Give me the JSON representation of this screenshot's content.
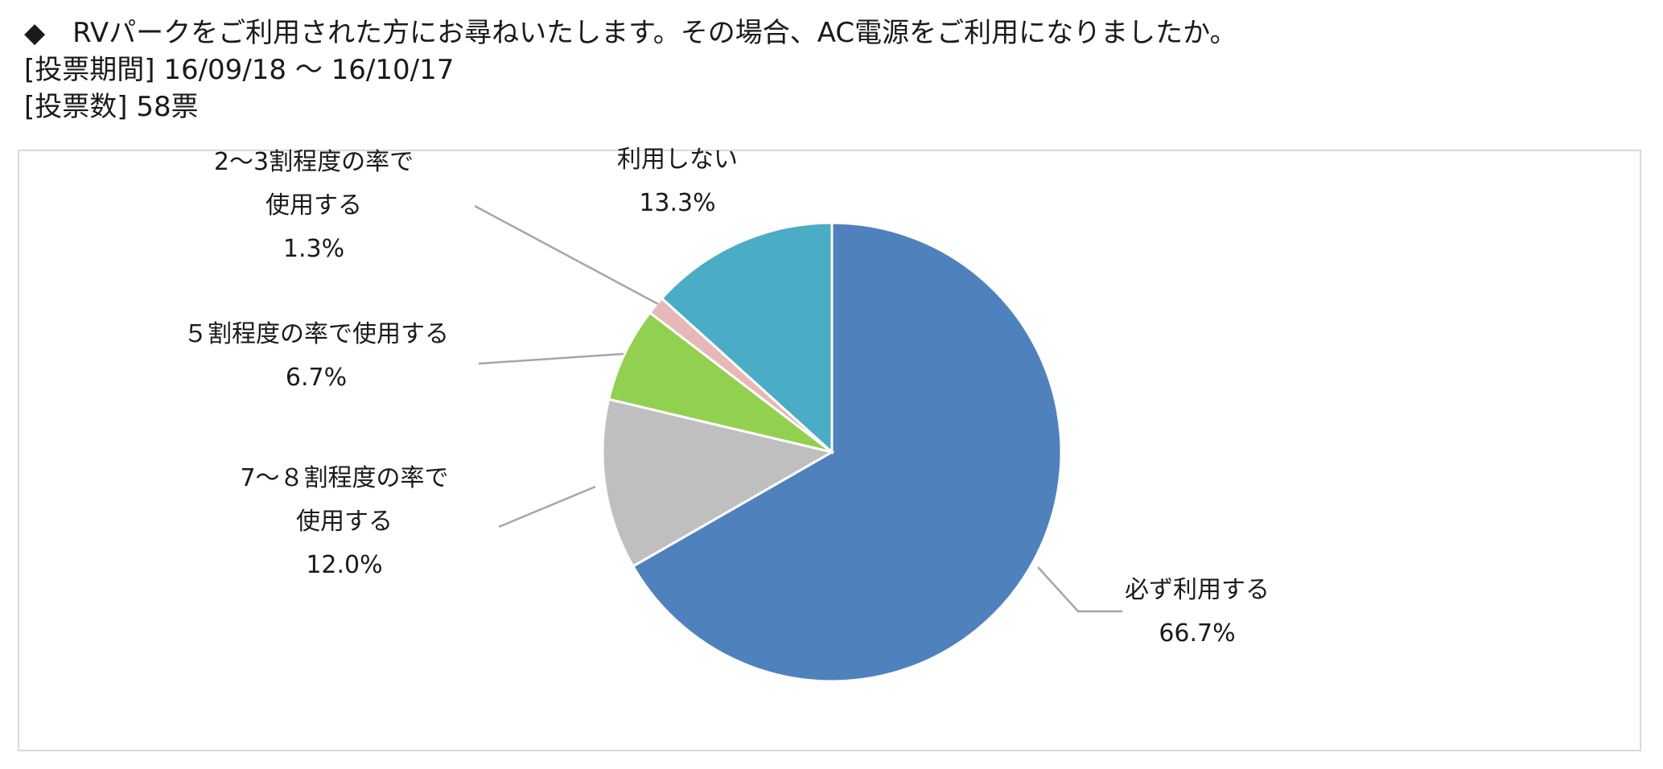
{
  "header": {
    "question": "◆　RVパークをご利用された方にお尋ねいたします。その場合、AC電源をご利用になりましたか。",
    "period": "[投票期間] 16/09/18 ～ 16/10/17",
    "votes": "[投票数] 58票"
  },
  "chart_data": {
    "type": "pie",
    "slices": [
      {
        "label_lines": [
          "必ず利用する"
        ],
        "value": 66.7,
        "value_label": "66.7%",
        "color": "#4F81BD"
      },
      {
        "label_lines": [
          "7～８割程度の率で",
          "使用する"
        ],
        "value": 12.0,
        "value_label": "12.0%",
        "color": "#BFBFBF"
      },
      {
        "label_lines": [
          "５割程度の率で使用する"
        ],
        "value": 6.7,
        "value_label": "6.7%",
        "color": "#92D050"
      },
      {
        "label_lines": [
          "2～3割程度の率で",
          "使用する"
        ],
        "value": 1.3,
        "value_label": "1.3%",
        "color": "#E6B9B8"
      },
      {
        "label_lines": [
          "利用しない"
        ],
        "value": 13.3,
        "value_label": "13.3%",
        "color": "#4BACC6"
      }
    ]
  }
}
